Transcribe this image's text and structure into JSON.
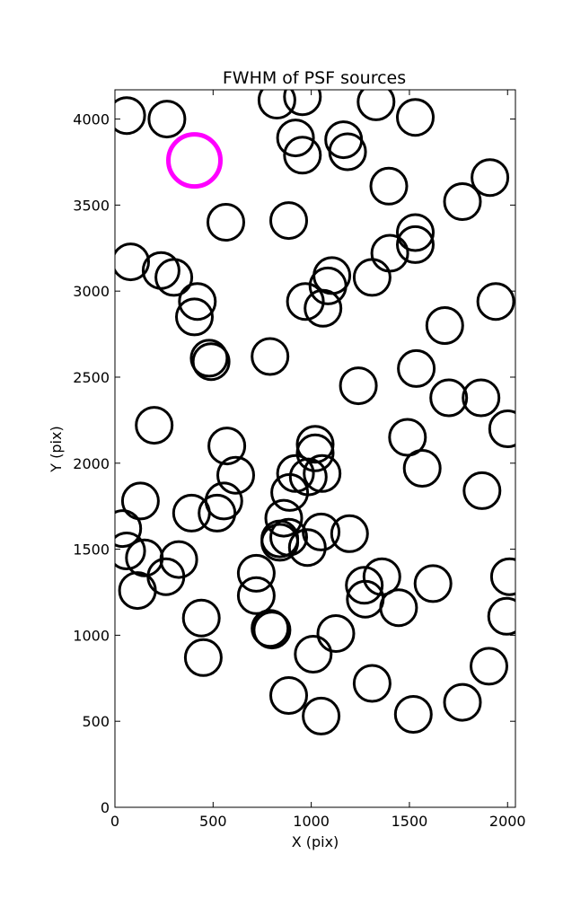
{
  "chart_data": {
    "type": "scatter",
    "title": "FWHM of PSF sources",
    "xlabel": "X (pix)",
    "ylabel": "Y (pix)",
    "xlim": [
      0,
      2040
    ],
    "ylim": [
      0,
      4170
    ],
    "xticks": [
      0,
      500,
      1000,
      1500,
      2000
    ],
    "yticks": [
      0,
      500,
      1000,
      1500,
      2000,
      2500,
      3000,
      3500,
      4000
    ],
    "grid": false,
    "marker": "open circle sized by FWHM",
    "colors": {
      "normal": "#000000",
      "highlight": "#ff00ff",
      "frame": "#000000"
    },
    "series": [
      {
        "points": [
          [
            60,
            4020
          ],
          [
            265,
            4000
          ],
          [
            825,
            4110
          ],
          [
            955,
            4130
          ],
          [
            1330,
            4100
          ],
          [
            1530,
            4010
          ],
          [
            920,
            3890
          ],
          [
            955,
            3790
          ],
          [
            1165,
            3880
          ],
          [
            1185,
            3810
          ],
          [
            1395,
            3610
          ],
          [
            1770,
            3520
          ],
          [
            1910,
            3660
          ],
          [
            565,
            3400
          ],
          [
            885,
            3410
          ],
          [
            1530,
            3340
          ],
          [
            1530,
            3270
          ],
          [
            1400,
            3220
          ],
          [
            80,
            3170
          ],
          [
            235,
            3120
          ],
          [
            300,
            3080
          ],
          [
            420,
            2940
          ],
          [
            405,
            2850
          ],
          [
            1105,
            3090
          ],
          [
            1085,
            3030
          ],
          [
            1310,
            3080
          ],
          [
            970,
            2940
          ],
          [
            1060,
            2900
          ],
          [
            1940,
            2940
          ],
          [
            1680,
            2800
          ],
          [
            480,
            2610
          ],
          [
            490,
            2590
          ],
          [
            790,
            2620
          ],
          [
            1535,
            2550
          ],
          [
            1240,
            2450
          ],
          [
            1700,
            2380
          ],
          [
            1865,
            2380
          ],
          [
            2000,
            2200
          ],
          [
            200,
            2220
          ],
          [
            570,
            2100
          ],
          [
            615,
            1930
          ],
          [
            1490,
            2150
          ],
          [
            1565,
            1970
          ],
          [
            1020,
            2110
          ],
          [
            1020,
            2060
          ],
          [
            920,
            1940
          ],
          [
            985,
            1920
          ],
          [
            1055,
            1940
          ],
          [
            890,
            1830
          ],
          [
            130,
            1780
          ],
          [
            555,
            1780
          ],
          [
            520,
            1710
          ],
          [
            390,
            1710
          ],
          [
            1870,
            1840
          ],
          [
            40,
            1620
          ],
          [
            60,
            1490
          ],
          [
            150,
            1450
          ],
          [
            325,
            1440
          ],
          [
            260,
            1340
          ],
          [
            860,
            1680
          ],
          [
            1050,
            1600
          ],
          [
            1195,
            1590
          ],
          [
            840,
            1560
          ],
          [
            840,
            1540
          ],
          [
            885,
            1570
          ],
          [
            980,
            1510
          ],
          [
            720,
            1360
          ],
          [
            720,
            1230
          ],
          [
            115,
            1260
          ],
          [
            1270,
            1290
          ],
          [
            1360,
            1340
          ],
          [
            1275,
            1210
          ],
          [
            1445,
            1160
          ],
          [
            1620,
            1300
          ],
          [
            2010,
            1340
          ],
          [
            440,
            1100
          ],
          [
            790,
            1040
          ],
          [
            800,
            1030
          ],
          [
            1125,
            1010
          ],
          [
            1995,
            1110
          ],
          [
            450,
            870
          ],
          [
            1010,
            890
          ],
          [
            1310,
            720
          ],
          [
            1905,
            820
          ],
          [
            885,
            650
          ],
          [
            1050,
            530
          ],
          [
            1520,
            540
          ],
          [
            1770,
            610
          ]
        ],
        "color": "#000000"
      },
      {
        "points": [
          [
            405,
            3760
          ]
        ],
        "color": "#ff00ff"
      }
    ]
  }
}
